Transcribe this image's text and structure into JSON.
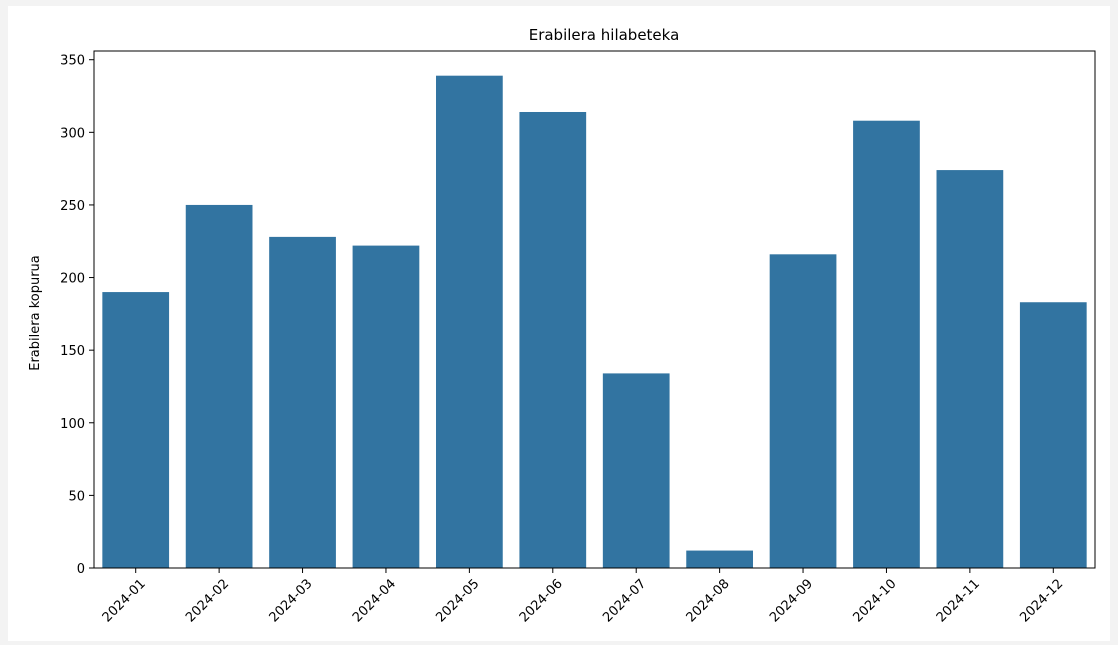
{
  "chart_data": {
    "type": "bar",
    "title": "Erabilera hilabeteka",
    "xlabel": "",
    "ylabel": "Erabilera kopurua",
    "categories": [
      "2024-01",
      "2024-02",
      "2024-03",
      "2024-04",
      "2024-05",
      "2024-06",
      "2024-07",
      "2024-08",
      "2024-09",
      "2024-10",
      "2024-11",
      "2024-12"
    ],
    "values": [
      190,
      250,
      228,
      222,
      339,
      314,
      134,
      12,
      216,
      308,
      274,
      183
    ],
    "ylim": [
      0,
      356
    ],
    "yticks": [
      0,
      50,
      100,
      150,
      200,
      250,
      300,
      350
    ],
    "grid": false,
    "color": "#3274a1"
  }
}
